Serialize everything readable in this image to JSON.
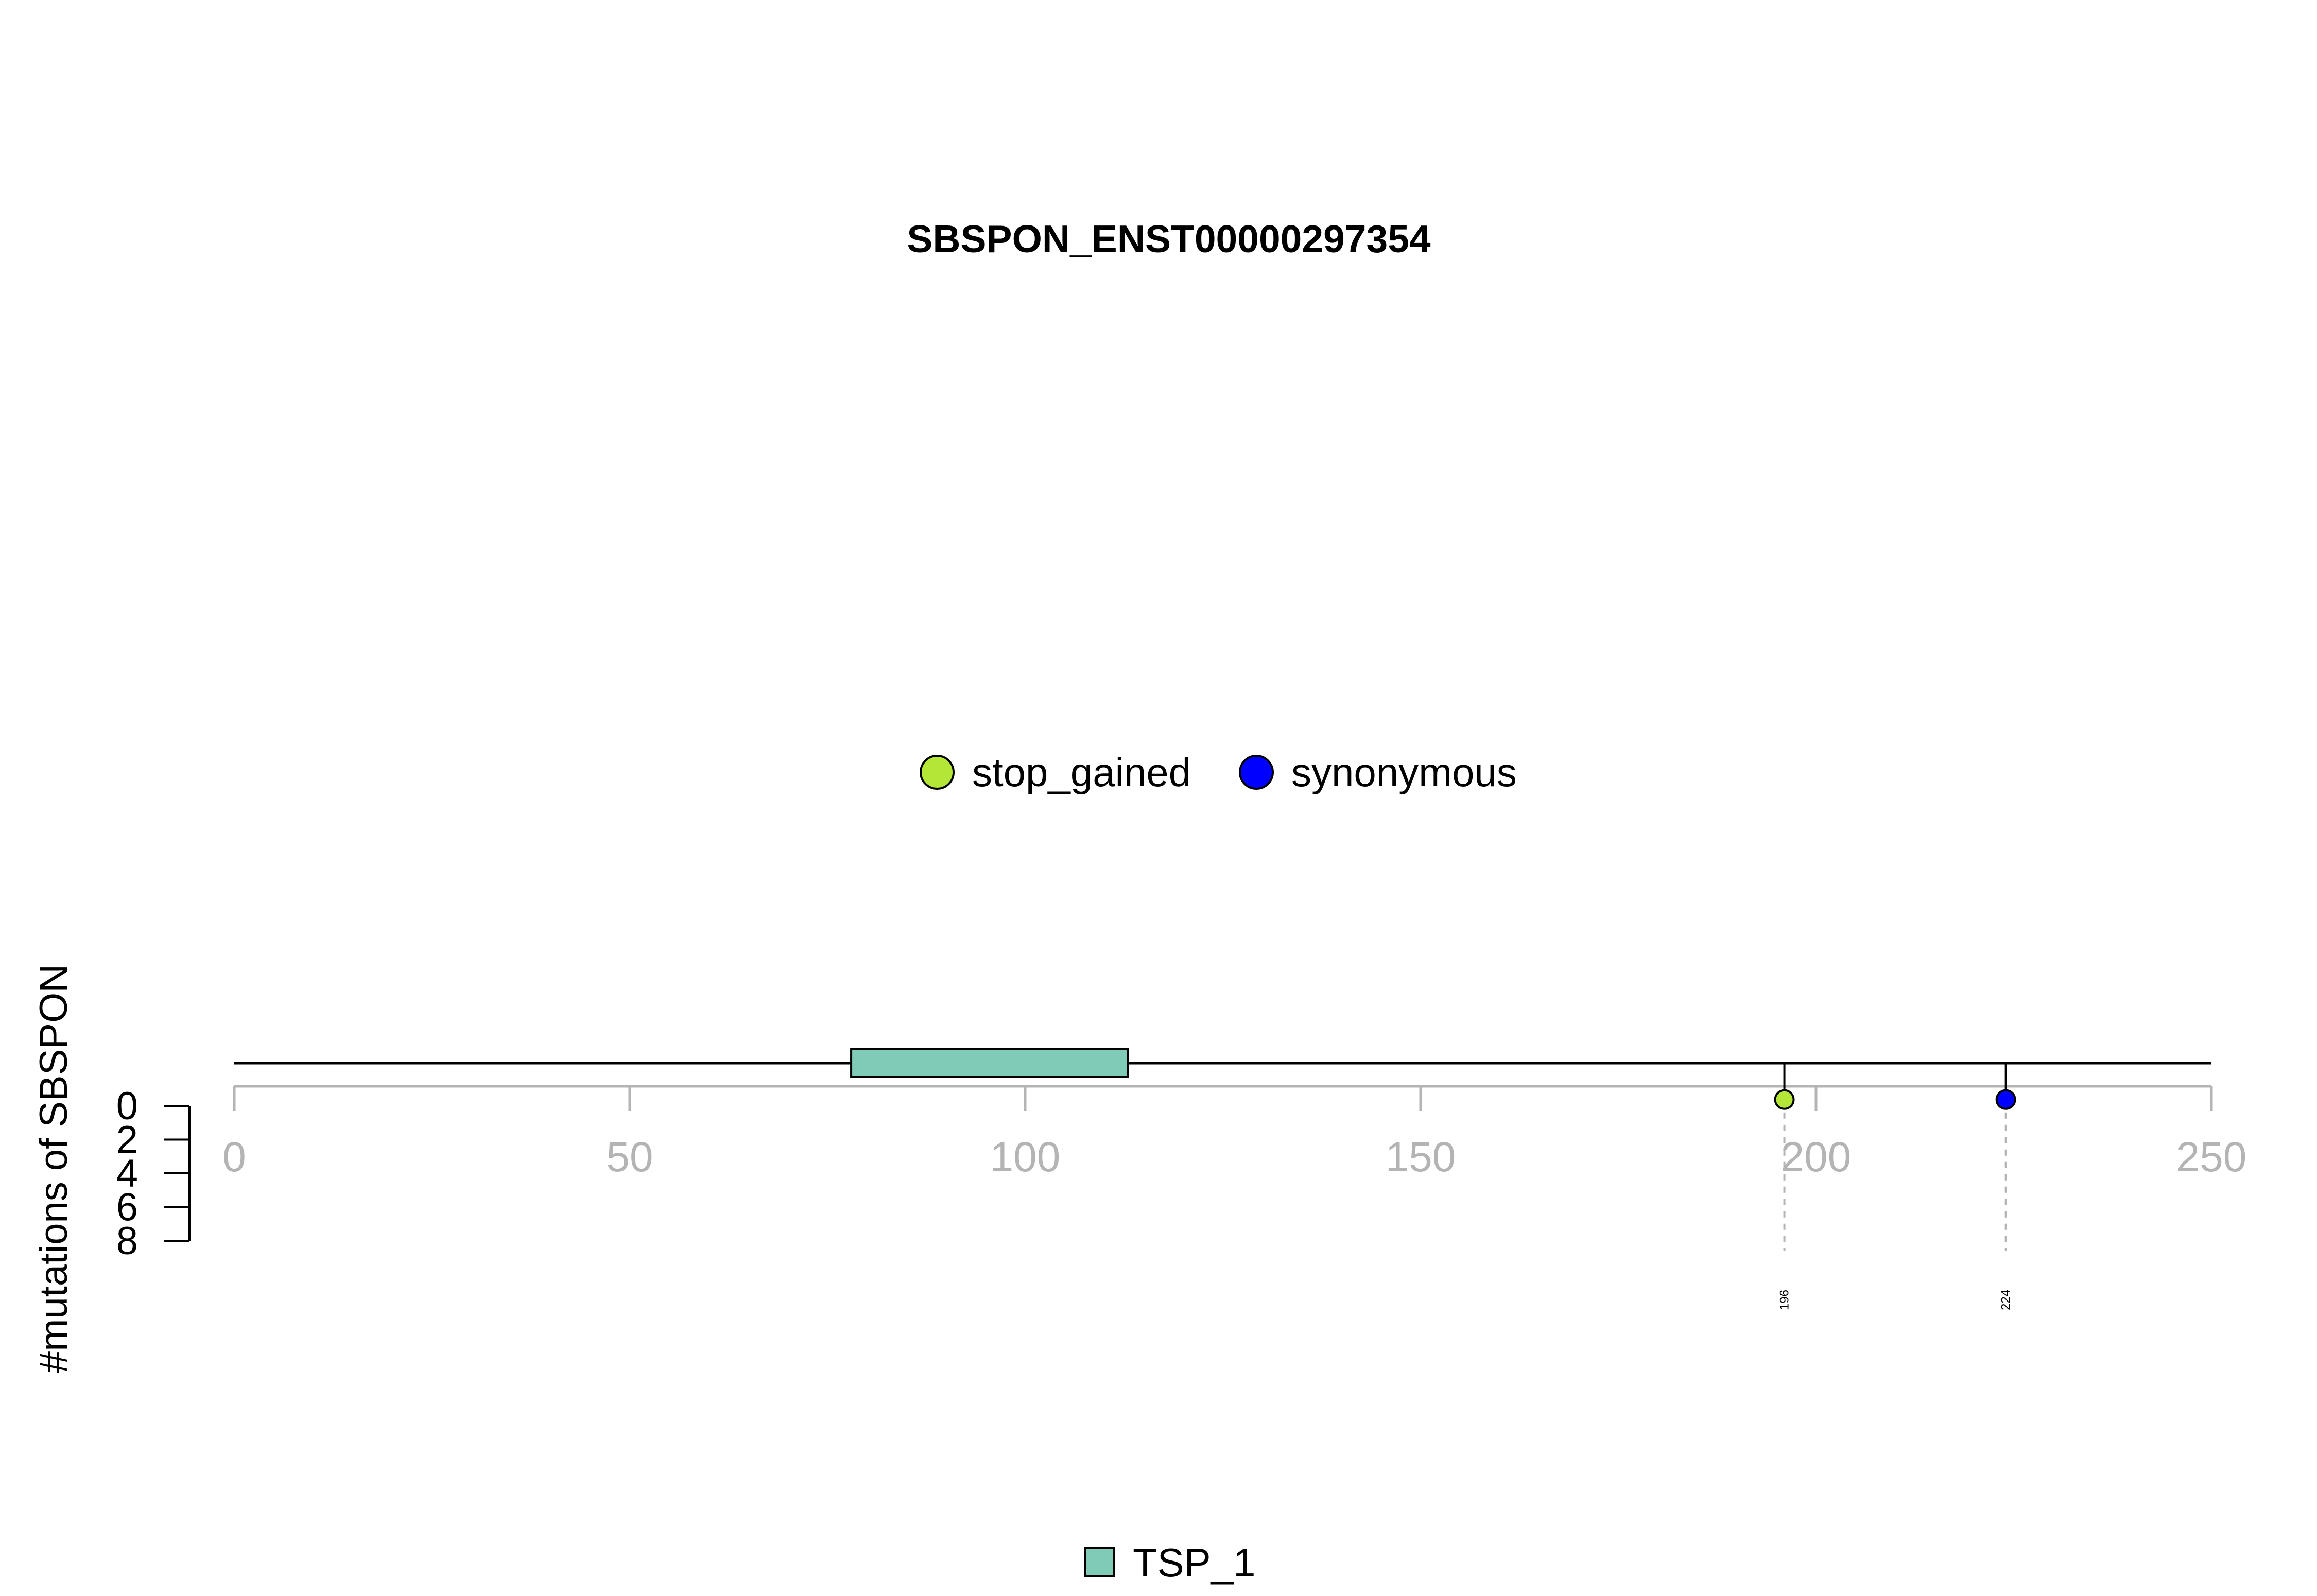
{
  "chart_data": {
    "type": "lollipop",
    "title": "SBSPON_ENST00000297354",
    "ylabel": "#mutations of SBSPON",
    "xlim": [
      0,
      250
    ],
    "x_ticks": [
      0,
      50,
      100,
      150,
      200,
      250
    ],
    "x_tick_labels": [
      "0",
      "50",
      "100",
      "150",
      "200",
      "250"
    ],
    "ylim": [
      0,
      8
    ],
    "y_ticks": [
      0,
      2,
      4,
      6,
      8
    ],
    "y_tick_labels": [
      "0",
      "2",
      "4",
      "6",
      "8"
    ],
    "mutation_legend": [
      {
        "name": "stop_gained",
        "color": "#b3e637"
      },
      {
        "name": "synonymous",
        "color": "#0000ff"
      }
    ],
    "mutations": [
      {
        "position": 196,
        "label": "196",
        "count": 1,
        "type": "stop_gained",
        "color": "#b3e637"
      },
      {
        "position": 224,
        "label": "224",
        "count": 1,
        "type": "synonymous",
        "color": "#0000ff"
      }
    ],
    "domains": [
      {
        "name": "TSP_1",
        "start": 78,
        "end": 113,
        "color": "#7fcbb8"
      }
    ],
    "domain_legend": [
      {
        "name": "TSP_1",
        "color": "#7fcbb8"
      }
    ]
  }
}
